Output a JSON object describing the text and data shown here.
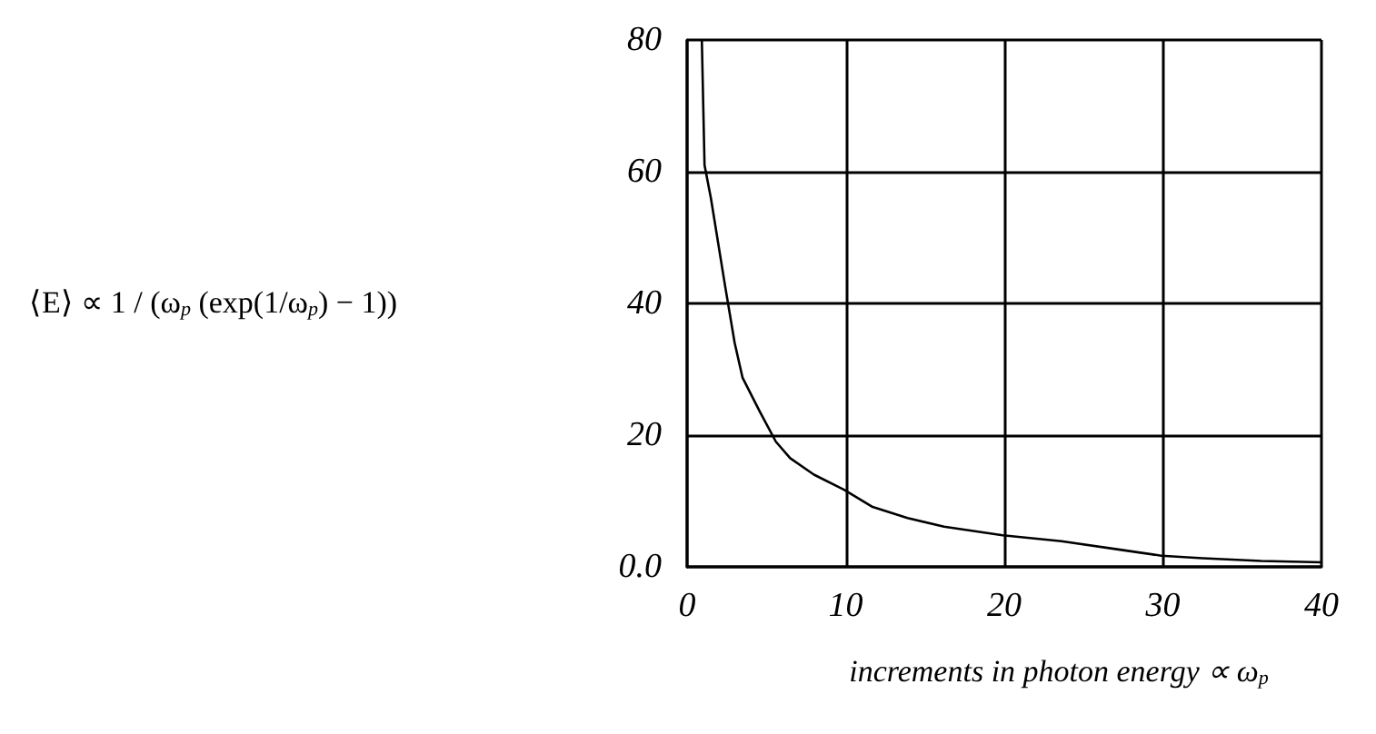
{
  "chart_data": {
    "type": "line",
    "xlabel": "increments in photon energy ∝ ω$_{p}$",
    "annotations": [
      "⟨E⟩ ∝ 1 / (ω$_{p}$ (exp(1/ω$_{p}$) − 1))"
    ],
    "x": [
      0.93,
      1.1,
      1.5,
      2.4,
      3.0,
      3.5,
      4.6,
      5.6,
      6.5,
      8,
      9.9,
      11.7,
      13.9,
      16.2,
      19.9,
      23.6,
      27.3,
      29.9,
      32.5,
      36.2,
      40
    ],
    "series": [
      {
        "color": "#000000",
        "values": [
          80,
          61,
          56,
          42.6,
          34,
          28.7,
          23.5,
          19,
          16.5,
          14,
          11.7,
          9.1,
          7.4,
          6.1,
          4.8,
          3.9,
          2.6,
          1.7,
          1.3,
          0.9,
          0.7
        ]
      }
    ],
    "xlim": [
      0,
      40
    ],
    "xticks": [
      0,
      10,
      20,
      30,
      40
    ],
    "ylim": [
      0,
      80
    ],
    "yticks": [
      {
        "value": 0,
        "label": "0.0"
      },
      20,
      40,
      60,
      80
    ],
    "grid": true,
    "marker": "none",
    "line_style": "solid"
  }
}
